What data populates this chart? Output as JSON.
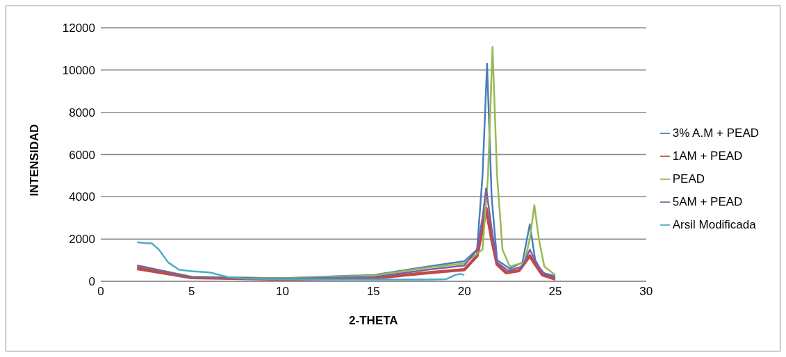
{
  "chart_data": {
    "type": "line",
    "xlabel": "2-THETA",
    "ylabel": "INTENSIDAD",
    "xlim": [
      0,
      30
    ],
    "xticks": [
      0,
      5,
      10,
      15,
      20,
      25,
      30
    ],
    "ylim": [
      0,
      12000
    ],
    "yticks": [
      0,
      2000,
      4000,
      6000,
      8000,
      10000,
      12000
    ],
    "grid": "y",
    "legend": "right",
    "marker": "none",
    "line_style": "solid",
    "series": [
      {
        "name": "3% A.M + PEAD",
        "color": "#4a7ebb",
        "x": [
          2,
          5,
          10,
          15,
          18,
          20,
          20.7,
          21,
          21.25,
          21.5,
          21.8,
          22.5,
          23.2,
          23.6,
          23.9,
          24.3,
          25
        ],
        "values": [
          700,
          200,
          150,
          300,
          700,
          950,
          1500,
          5000,
          10300,
          4000,
          1000,
          600,
          900,
          2700,
          1000,
          400,
          250
        ]
      },
      {
        "name": "1AM + PEAD",
        "color": "#be4b48",
        "x": [
          2,
          5,
          10,
          15,
          18,
          20,
          20.7,
          21,
          21.2,
          21.5,
          21.8,
          22.3,
          23,
          23.6,
          23.9,
          24.3,
          25
        ],
        "values": [
          600,
          170,
          100,
          150,
          400,
          550,
          1200,
          2500,
          3450,
          2000,
          800,
          400,
          500,
          1200,
          800,
          300,
          100
        ]
      },
      {
        "name": "PEAD",
        "color": "#98b954",
        "x": [
          2,
          5,
          10,
          15,
          18,
          20,
          21,
          21.3,
          21.55,
          21.8,
          22.1,
          22.5,
          23.3,
          23.6,
          23.85,
          24.1,
          24.4,
          25
        ],
        "values": [
          750,
          220,
          140,
          270,
          650,
          850,
          1500,
          5000,
          11100,
          5000,
          1500,
          700,
          900,
          2000,
          3600,
          2000,
          700,
          300
        ]
      },
      {
        "name": "5AM + PEAD",
        "color": "#7d60a0",
        "x": [
          2,
          5,
          10,
          15,
          18,
          20,
          20.7,
          21,
          21.2,
          21.5,
          21.8,
          22.4,
          23.2,
          23.6,
          24,
          24.4,
          25
        ],
        "values": [
          750,
          200,
          120,
          200,
          550,
          750,
          1500,
          3000,
          4400,
          2500,
          900,
          500,
          700,
          1500,
          800,
          350,
          200
        ]
      },
      {
        "name": "Arsil Modificada",
        "color": "#4bacc6",
        "x": [
          2,
          2.5,
          2.8,
          3.2,
          3.7,
          4.3,
          5,
          6,
          7,
          8,
          10,
          15,
          18,
          19,
          19.5,
          19.8,
          20
        ],
        "values": [
          1850,
          1800,
          1800,
          1500,
          900,
          550,
          480,
          420,
          200,
          120,
          100,
          80,
          80,
          100,
          300,
          350,
          300
        ]
      }
    ]
  }
}
